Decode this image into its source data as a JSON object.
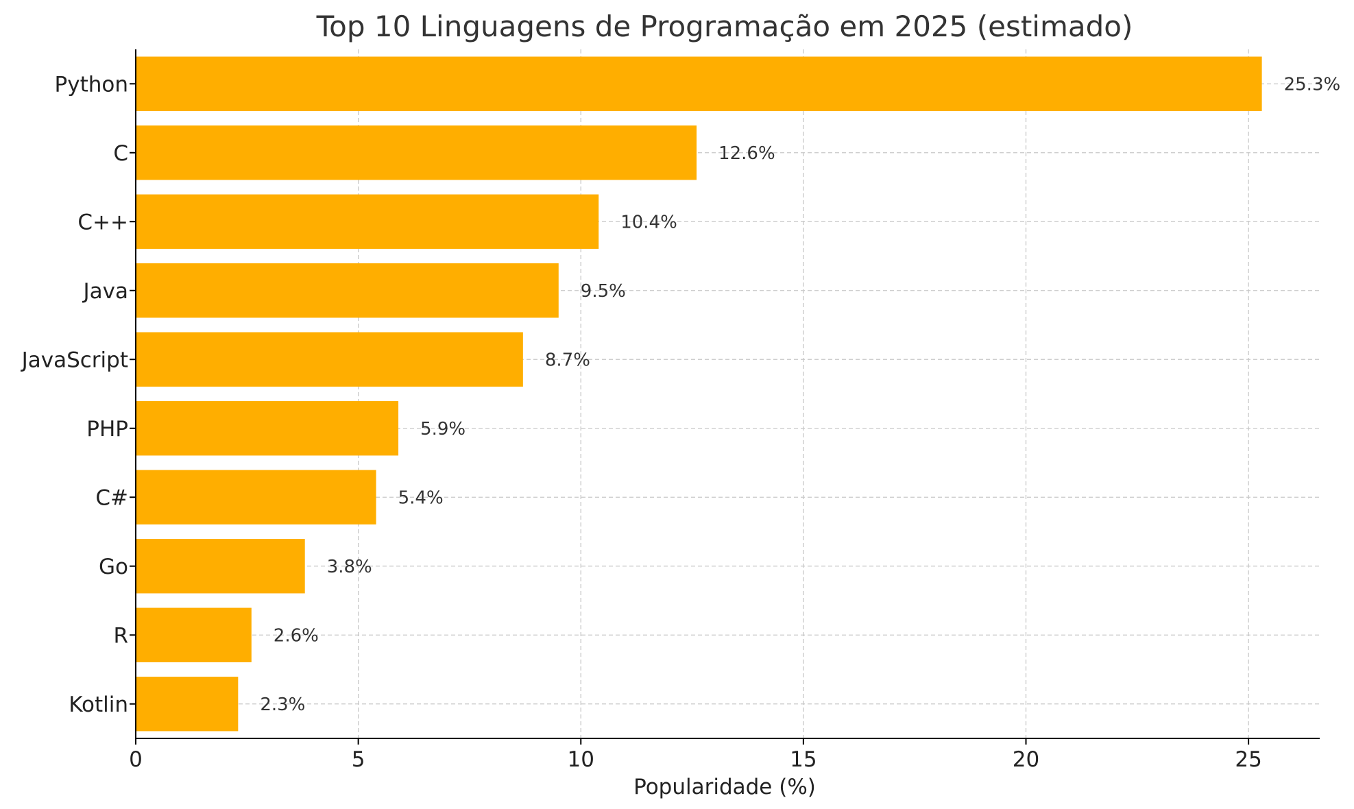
{
  "chart_data": {
    "type": "bar",
    "orientation": "horizontal",
    "title": "Top 10 Linguagens de Programação em 2025 (estimado)",
    "xlabel": "Popularidade (%)",
    "ylabel": "",
    "categories": [
      "Python",
      "C",
      "C++",
      "Java",
      "JavaScript",
      "PHP",
      "C#",
      "Go",
      "R",
      "Kotlin"
    ],
    "values": [
      25.3,
      12.6,
      10.4,
      9.5,
      8.7,
      5.9,
      5.4,
      3.8,
      2.6,
      2.3
    ],
    "data_labels": [
      "25.3%",
      "12.6%",
      "10.4%",
      "9.5%",
      "8.7%",
      "5.9%",
      "5.4%",
      "3.8%",
      "2.6%",
      "2.3%"
    ],
    "xlim": [
      0,
      26.6
    ],
    "xticks": [
      0,
      5,
      10,
      15,
      20,
      25
    ],
    "xtick_labels": [
      "0",
      "5",
      "10",
      "15",
      "20",
      "25"
    ],
    "grid": true,
    "bar_color": "#FFAE00"
  }
}
